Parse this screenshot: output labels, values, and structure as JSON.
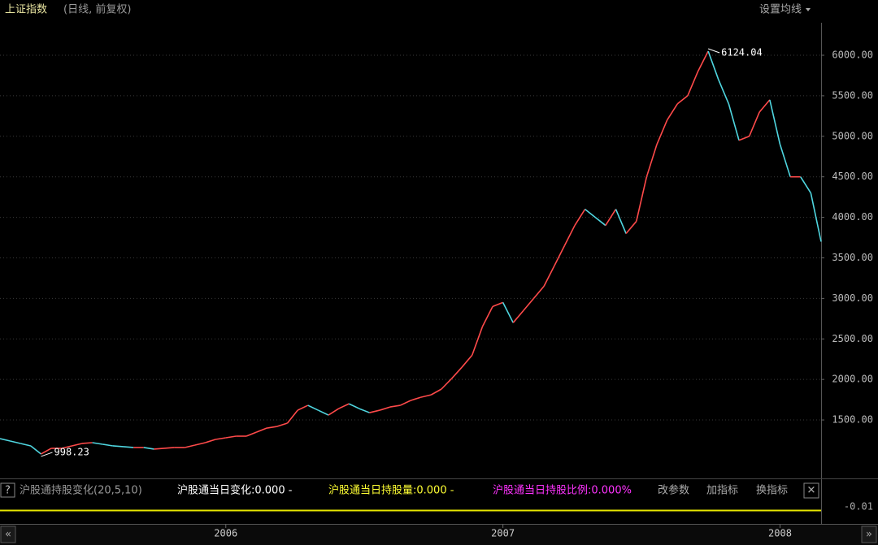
{
  "header": {
    "title": "上证指数",
    "subtitle": "(日线, 前复权)",
    "button": "设置均线"
  },
  "chart_data": {
    "type": "line",
    "categories": [
      null,
      null,
      null,
      null,
      null,
      null,
      null,
      null,
      null,
      null,
      null,
      null,
      null,
      null,
      null,
      null,
      null,
      null,
      null,
      null,
      null,
      null,
      "2006",
      null,
      null,
      null,
      null,
      null,
      null,
      null,
      null,
      null,
      null,
      null,
      null,
      null,
      null,
      null,
      null,
      null,
      null,
      null,
      null,
      null,
      null,
      null,
      null,
      null,
      null,
      "2007",
      null,
      null,
      null,
      null,
      null,
      null,
      null,
      null,
      null,
      null,
      null,
      null,
      null,
      null,
      null,
      null,
      null,
      null,
      null,
      null,
      null,
      null,
      null,
      null,
      null,
      null,
      "2008",
      null,
      null,
      null,
      null
    ],
    "series": [
      {
        "name": "上证指数",
        "up_color": "#ff4a4a",
        "down_color": "#4fd6e0",
        "values": [
          1270,
          1240,
          1210,
          1180,
          1080,
          1150,
          1150,
          1180,
          1210,
          1220,
          1200,
          1180,
          1170,
          1160,
          1160,
          1140,
          1150,
          1160,
          1160,
          1190,
          1220,
          1260,
          1280,
          1300,
          1300,
          1350,
          1400,
          1420,
          1460,
          1620,
          1680,
          1620,
          1560,
          1640,
          1700,
          1640,
          1590,
          1620,
          1660,
          1680,
          1740,
          1780,
          1810,
          1880,
          2010,
          2150,
          2300,
          2650,
          2900,
          2950,
          2700,
          2850,
          3000,
          3150,
          3400,
          3650,
          3900,
          4100,
          4000,
          3900,
          4100,
          3800,
          3950,
          4500,
          4900,
          5200,
          5400,
          5500,
          5800,
          6050,
          5700,
          5400,
          4950,
          5000,
          5300,
          5450,
          4900,
          4500,
          4500,
          4300,
          3700
        ]
      }
    ],
    "ylim": [
      819,
      6381
    ],
    "yticks": [
      {
        "value": 1500,
        "label": "1500.00"
      },
      {
        "value": 2000,
        "label": "2000.00"
      },
      {
        "value": 2500,
        "label": "2500.00"
      },
      {
        "value": 3000,
        "label": "3000.00"
      },
      {
        "value": 3500,
        "label": "3500.00"
      },
      {
        "value": 4000,
        "label": "4000.00"
      },
      {
        "value": 4500,
        "label": "4500.00"
      },
      {
        "value": 5000,
        "label": "5000.00"
      },
      {
        "value": 5500,
        "label": "5500.00"
      },
      {
        "value": 6000,
        "label": "6000.00"
      }
    ],
    "grid": true,
    "annotations": {
      "high": "6124.04",
      "low": "998.23"
    }
  },
  "indicator": {
    "help": "?",
    "name": "沪股通持股变化(20,5,10)",
    "item1": "沪股通当日变化:0.000 -",
    "item2": "沪股通当日持股量:0.000 -",
    "item3": "沪股通当日持股比例:0.000%",
    "btn1": "改参数",
    "btn2": "加指标",
    "btn3": "换指标",
    "close": "✕",
    "axis_label": "-0.01"
  },
  "nav": {
    "left": "«",
    "right": "»"
  }
}
